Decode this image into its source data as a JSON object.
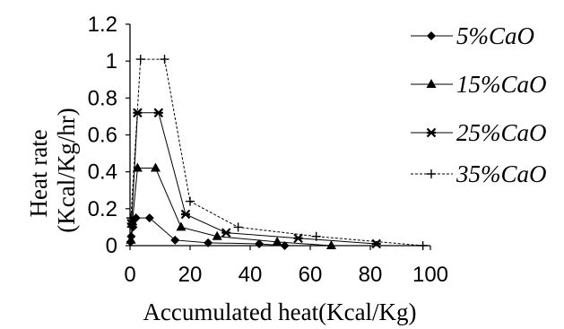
{
  "chart_data": {
    "type": "line",
    "title": "",
    "xlabel": "Accumulated heat(Kcal/Kg)",
    "ylabel": [
      "Heat rate",
      "(Kcal/Kg/hr)"
    ],
    "xlim": [
      0,
      100
    ],
    "ylim": [
      0,
      1.2
    ],
    "xticks": [
      "0",
      "20",
      "40",
      "60",
      "80",
      "100"
    ],
    "yticks": [
      "0",
      "0.2",
      "0.4",
      "0.6",
      "0.8",
      "1",
      "1.2"
    ],
    "grid": false,
    "legend_position": "right",
    "series": [
      {
        "name": "5%CaO",
        "marker": "diamond",
        "line": "solid",
        "x": [
          0.2,
          0.4,
          1.0,
          2.0,
          6.5,
          15.0,
          26.0,
          43.0,
          51.5
        ],
        "y": [
          0.02,
          0.05,
          0.1,
          0.15,
          0.15,
          0.03,
          0.015,
          0.01,
          0.0
        ]
      },
      {
        "name": "15%CaO",
        "marker": "triangle",
        "line": "solid",
        "x": [
          0.3,
          0.8,
          2.5,
          8.5,
          17.0,
          29.0,
          49.0,
          67.0
        ],
        "y": [
          0.03,
          0.13,
          0.42,
          0.42,
          0.1,
          0.05,
          0.02,
          0.0
        ]
      },
      {
        "name": "25%CaO",
        "marker": "x-star",
        "line": "solid",
        "x": [
          0.5,
          2.5,
          9.5,
          18.5,
          32.0,
          56.0,
          82.0
        ],
        "y": [
          0.12,
          0.72,
          0.72,
          0.17,
          0.07,
          0.04,
          0.01
        ]
      },
      {
        "name": "35%CaO",
        "marker": "plus",
        "line": "dashed",
        "x": [
          0.3,
          3.5,
          11.5,
          20.0,
          36.0,
          62.0,
          97.5
        ],
        "y": [
          0.15,
          1.01,
          1.01,
          0.24,
          0.1,
          0.05,
          0.0
        ]
      }
    ]
  }
}
